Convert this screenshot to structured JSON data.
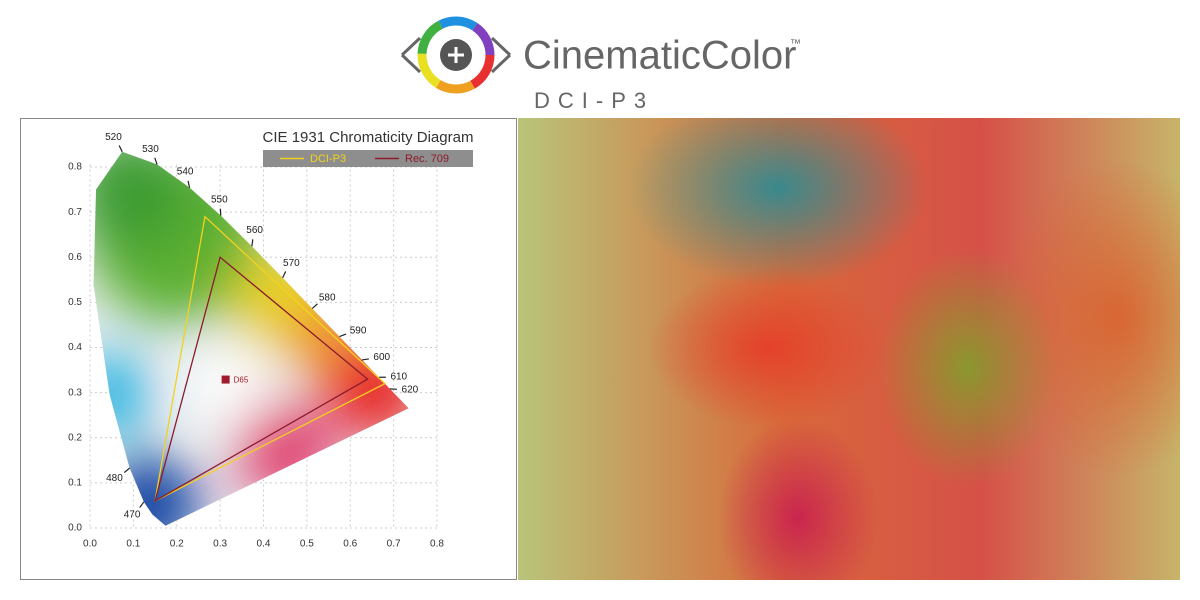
{
  "header": {
    "brand": "CinematicColor",
    "trademark": "™",
    "subtitle": "DCI-P3"
  },
  "chart_data": {
    "type": "line",
    "title": "CIE 1931 Chromaticity Diagram",
    "series": [
      {
        "name": "DCI-P3",
        "color": "#f2d21e",
        "x": [
          0.68,
          0.265,
          0.15
        ],
        "y": [
          0.32,
          0.69,
          0.06
        ]
      },
      {
        "name": "Rec. 709",
        "color": "#8c1c2c",
        "x": [
          0.64,
          0.3,
          0.15
        ],
        "y": [
          0.33,
          0.6,
          0.06
        ]
      }
    ],
    "points": [
      {
        "label": "D65",
        "x": 0.3127,
        "y": 0.329,
        "color": "#a01c2c"
      }
    ],
    "locus": {
      "labels": [
        null,
        null,
        "470",
        "480",
        null,
        null,
        null,
        "520",
        "530",
        "540",
        "550",
        "560",
        "570",
        "580",
        "590",
        "600",
        "610",
        "620",
        null,
        null
      ],
      "x": [
        0.1741,
        0.144,
        0.1241,
        0.0913,
        0.0454,
        0.0082,
        0.0139,
        0.0743,
        0.1547,
        0.2296,
        0.3016,
        0.3731,
        0.4441,
        0.5125,
        0.5752,
        0.627,
        0.6658,
        0.6915,
        0.719,
        0.7347
      ],
      "y": [
        0.005,
        0.0297,
        0.0578,
        0.1329,
        0.295,
        0.5384,
        0.7502,
        0.8338,
        0.8059,
        0.7543,
        0.6923,
        0.6245,
        0.5547,
        0.4866,
        0.4242,
        0.3725,
        0.334,
        0.3083,
        0.2809,
        0.2653
      ]
    },
    "xlim": [
      0,
      0.8
    ],
    "ylim": [
      0,
      0.85
    ],
    "xticks": [
      {
        "value": 0,
        "label": "0.0"
      },
      0.1,
      0.2,
      0.3,
      0.4,
      0.5,
      0.6,
      0.7,
      0.8
    ],
    "yticks": [
      {
        "value": 0,
        "label": "0.0"
      },
      0.1,
      0.2,
      0.3,
      0.4,
      0.5,
      0.6,
      0.7,
      0.8
    ],
    "grid": true
  }
}
